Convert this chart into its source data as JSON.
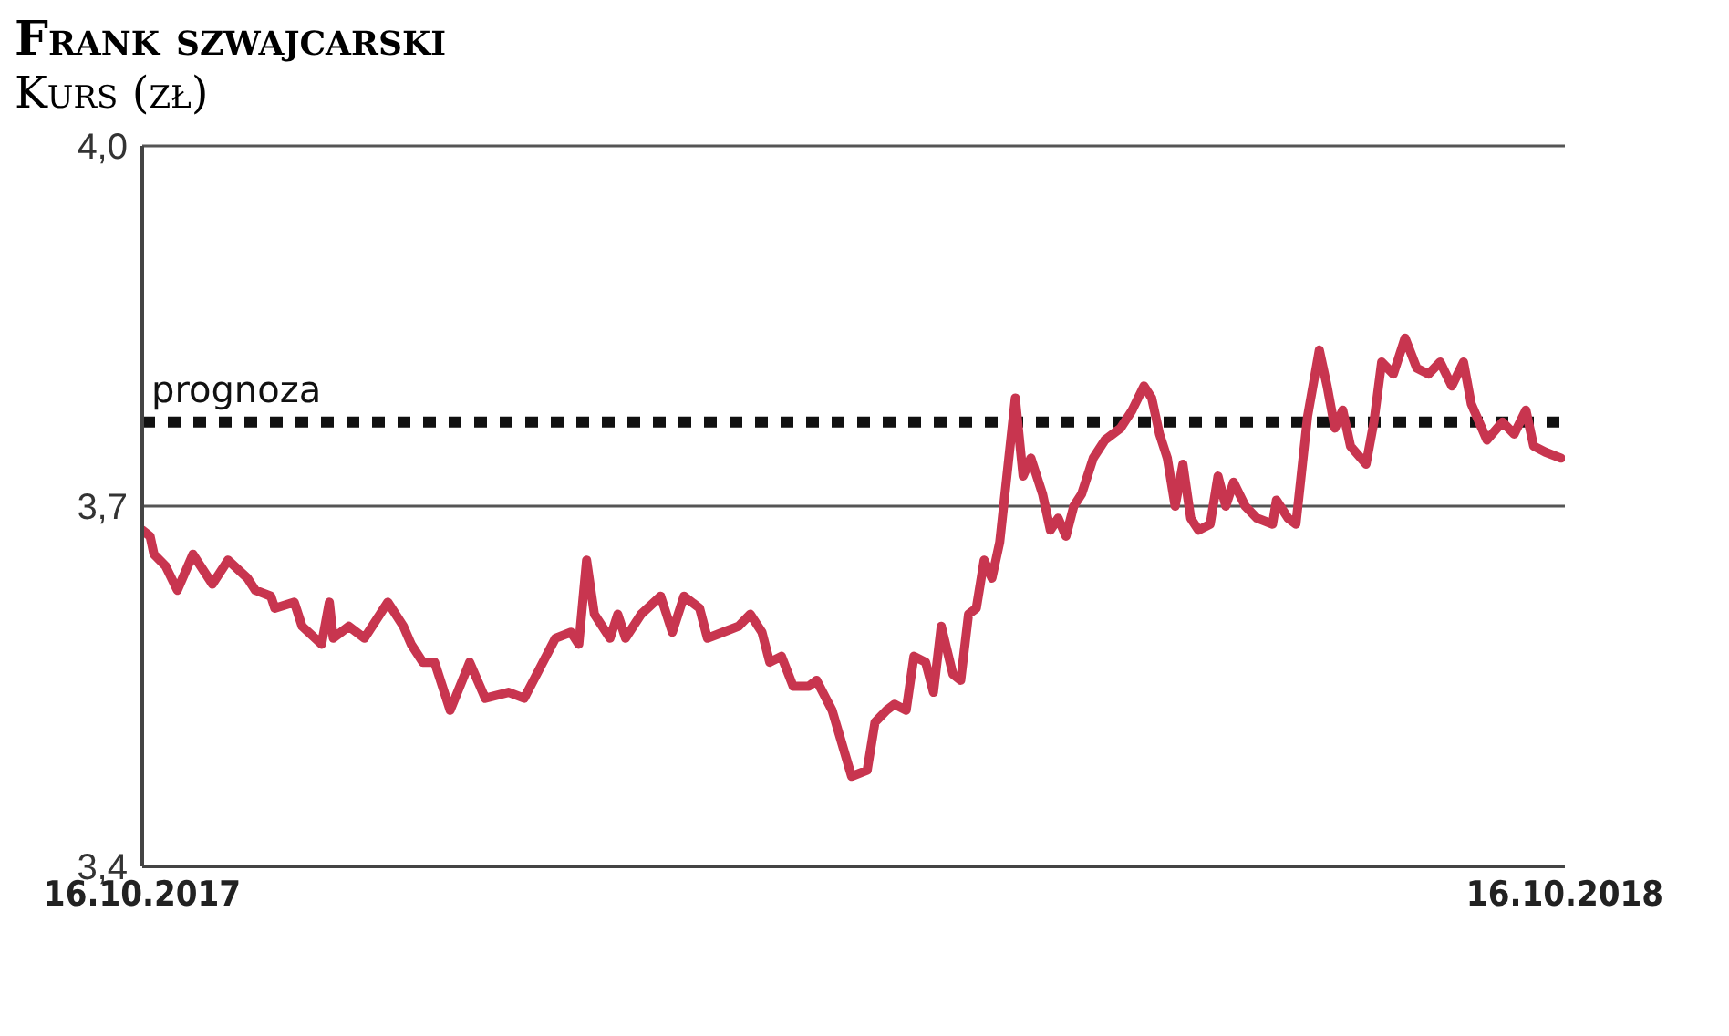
{
  "chart_data": {
    "type": "line",
    "title": "Frank szwajcarski",
    "subtitle": "Kurs (zł)",
    "xlim": [
      "2017-10-16",
      "2018-10-16"
    ],
    "xticks": [
      {
        "value": "2017-10-16",
        "label": "16.10.2017"
      },
      {
        "value": "2018-10-16",
        "label": "16.10.2018"
      }
    ],
    "ylim": [
      3.4,
      4.0
    ],
    "yticks": [
      {
        "value": 3.4,
        "label": "3,4"
      },
      {
        "value": 3.7,
        "label": "3,7"
      },
      {
        "value": 4.0,
        "label": "4,0"
      }
    ],
    "grid": "y",
    "line_style": "solid",
    "ref_lines": [
      {
        "axis": "y",
        "value": 3.77,
        "label": "prognoza",
        "color": "#111111",
        "line_style": "dotted"
      }
    ],
    "x": [
      "2017-10-16",
      "2017-10-18",
      "2017-10-19",
      "2017-10-22",
      "2017-10-25",
      "2017-10-29",
      "2017-11-03",
      "2017-11-07",
      "2017-11-12",
      "2017-11-14",
      "2017-11-18",
      "2017-11-19",
      "2017-11-24",
      "2017-11-26",
      "2017-12-01",
      "2017-12-03",
      "2017-12-04",
      "2017-12-08",
      "2017-12-12",
      "2017-12-16",
      "2017-12-18",
      "2017-12-22",
      "2017-12-24",
      "2017-12-27",
      "2017-12-30",
      "2018-01-03",
      "2018-01-08",
      "2018-01-12",
      "2018-01-18",
      "2018-01-22",
      "2018-01-26",
      "2018-01-30",
      "2018-02-03",
      "2018-02-05",
      "2018-02-07",
      "2018-02-09",
      "2018-02-13",
      "2018-02-15",
      "2018-02-17",
      "2018-02-21",
      "2018-02-26",
      "2018-03-01",
      "2018-03-04",
      "2018-03-08",
      "2018-03-10",
      "2018-03-14",
      "2018-03-18",
      "2018-03-21",
      "2018-03-24",
      "2018-03-26",
      "2018-03-29",
      "2018-04-01",
      "2018-04-05",
      "2018-04-07",
      "2018-04-11",
      "2018-04-16",
      "2018-04-20",
      "2018-04-22",
      "2018-04-25",
      "2018-04-27",
      "2018-04-30",
      "2018-05-02",
      "2018-05-05",
      "2018-05-07",
      "2018-05-09",
      "2018-05-12",
      "2018-05-14",
      "2018-05-16",
      "2018-05-18",
      "2018-05-20",
      "2018-05-22",
      "2018-05-24",
      "2018-05-26",
      "2018-05-28",
      "2018-05-30",
      "2018-06-01",
      "2018-06-04",
      "2018-06-06",
      "2018-06-08",
      "2018-06-10",
      "2018-06-12",
      "2018-06-14",
      "2018-06-17",
      "2018-06-20",
      "2018-06-24",
      "2018-06-27",
      "2018-06-30",
      "2018-07-02",
      "2018-07-04",
      "2018-07-06",
      "2018-07-08",
      "2018-07-10",
      "2018-07-12",
      "2018-07-14",
      "2018-07-17",
      "2018-07-19",
      "2018-07-21",
      "2018-07-23",
      "2018-07-26",
      "2018-07-29",
      "2018-08-02",
      "2018-08-03",
      "2018-08-06",
      "2018-08-08",
      "2018-08-11",
      "2018-08-14",
      "2018-08-16",
      "2018-08-18",
      "2018-08-20",
      "2018-08-22",
      "2018-08-26",
      "2018-08-28",
      "2018-08-30",
      "2018-09-02",
      "2018-09-05",
      "2018-09-08",
      "2018-09-11",
      "2018-09-14",
      "2018-09-17",
      "2018-09-20",
      "2018-09-22",
      "2018-09-26",
      "2018-09-30",
      "2018-10-03",
      "2018-10-06",
      "2018-10-08",
      "2018-10-11",
      "2018-10-15"
    ],
    "series": [
      {
        "color": "#c8354f",
        "values": [
          3.68,
          3.675,
          3.66,
          3.65,
          3.63,
          3.66,
          3.635,
          3.655,
          3.64,
          3.63,
          3.625,
          3.615,
          3.62,
          3.6,
          3.585,
          3.62,
          3.59,
          3.6,
          3.59,
          3.61,
          3.62,
          3.6,
          3.585,
          3.57,
          3.57,
          3.53,
          3.57,
          3.54,
          3.545,
          3.54,
          3.565,
          3.59,
          3.595,
          3.585,
          3.655,
          3.61,
          3.59,
          3.61,
          3.59,
          3.61,
          3.625,
          3.595,
          3.625,
          3.615,
          3.59,
          3.595,
          3.6,
          3.61,
          3.595,
          3.57,
          3.575,
          3.55,
          3.55,
          3.555,
          3.53,
          3.475,
          3.48,
          3.52,
          3.53,
          3.535,
          3.53,
          3.575,
          3.57,
          3.545,
          3.6,
          3.56,
          3.555,
          3.61,
          3.615,
          3.655,
          3.64,
          3.67,
          3.73,
          3.79,
          3.725,
          3.74,
          3.71,
          3.68,
          3.69,
          3.675,
          3.7,
          3.71,
          3.74,
          3.755,
          3.765,
          3.78,
          3.8,
          3.79,
          3.76,
          3.74,
          3.7,
          3.735,
          3.69,
          3.68,
          3.685,
          3.725,
          3.7,
          3.72,
          3.7,
          3.69,
          3.685,
          3.705,
          3.69,
          3.685,
          3.775,
          3.83,
          3.8,
          3.765,
          3.78,
          3.75,
          3.735,
          3.77,
          3.82,
          3.81,
          3.84,
          3.815,
          3.81,
          3.82,
          3.8,
          3.82,
          3.785,
          3.755,
          3.77,
          3.76,
          3.78,
          3.75,
          3.745,
          3.74
        ]
      }
    ]
  }
}
